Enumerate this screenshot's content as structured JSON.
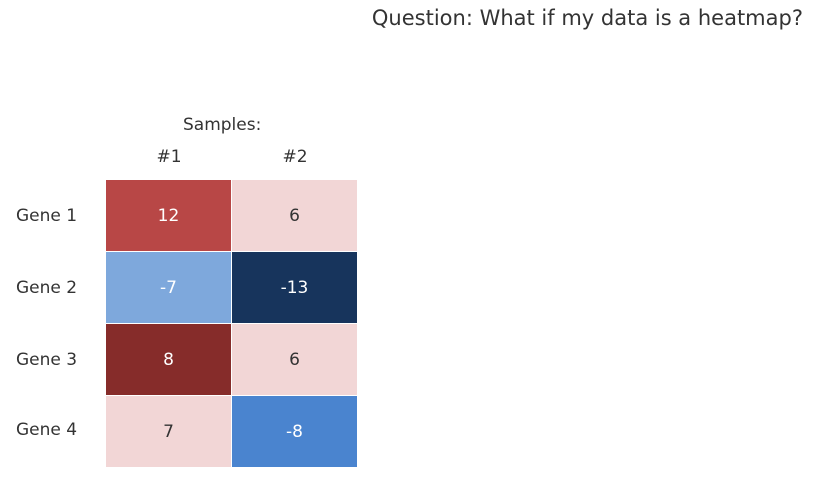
{
  "question": "Question: What if my data is a heatmap?",
  "chart_data": {
    "type": "heatmap",
    "title": "",
    "column_header": "Samples:",
    "columns": [
      "#1",
      "#2"
    ],
    "rows": [
      "Gene 1",
      "Gene 2",
      "Gene 3",
      "Gene 4"
    ],
    "values": [
      [
        12,
        6
      ],
      [
        -7,
        -13
      ],
      [
        8,
        6
      ],
      [
        7,
        -8
      ]
    ],
    "cell_colors": [
      [
        "#b84746",
        "#f2d6d6"
      ],
      [
        "#7ea8dc",
        "#17345c"
      ],
      [
        "#862c2a",
        "#f2d6d6"
      ],
      [
        "#f2d6d6",
        "#4a84cf"
      ]
    ],
    "text_colors": [
      [
        "#ffffff",
        "#333333"
      ],
      [
        "#ffffff",
        "#ffffff"
      ],
      [
        "#ffffff",
        "#333333"
      ],
      [
        "#333333",
        "#ffffff"
      ]
    ]
  }
}
